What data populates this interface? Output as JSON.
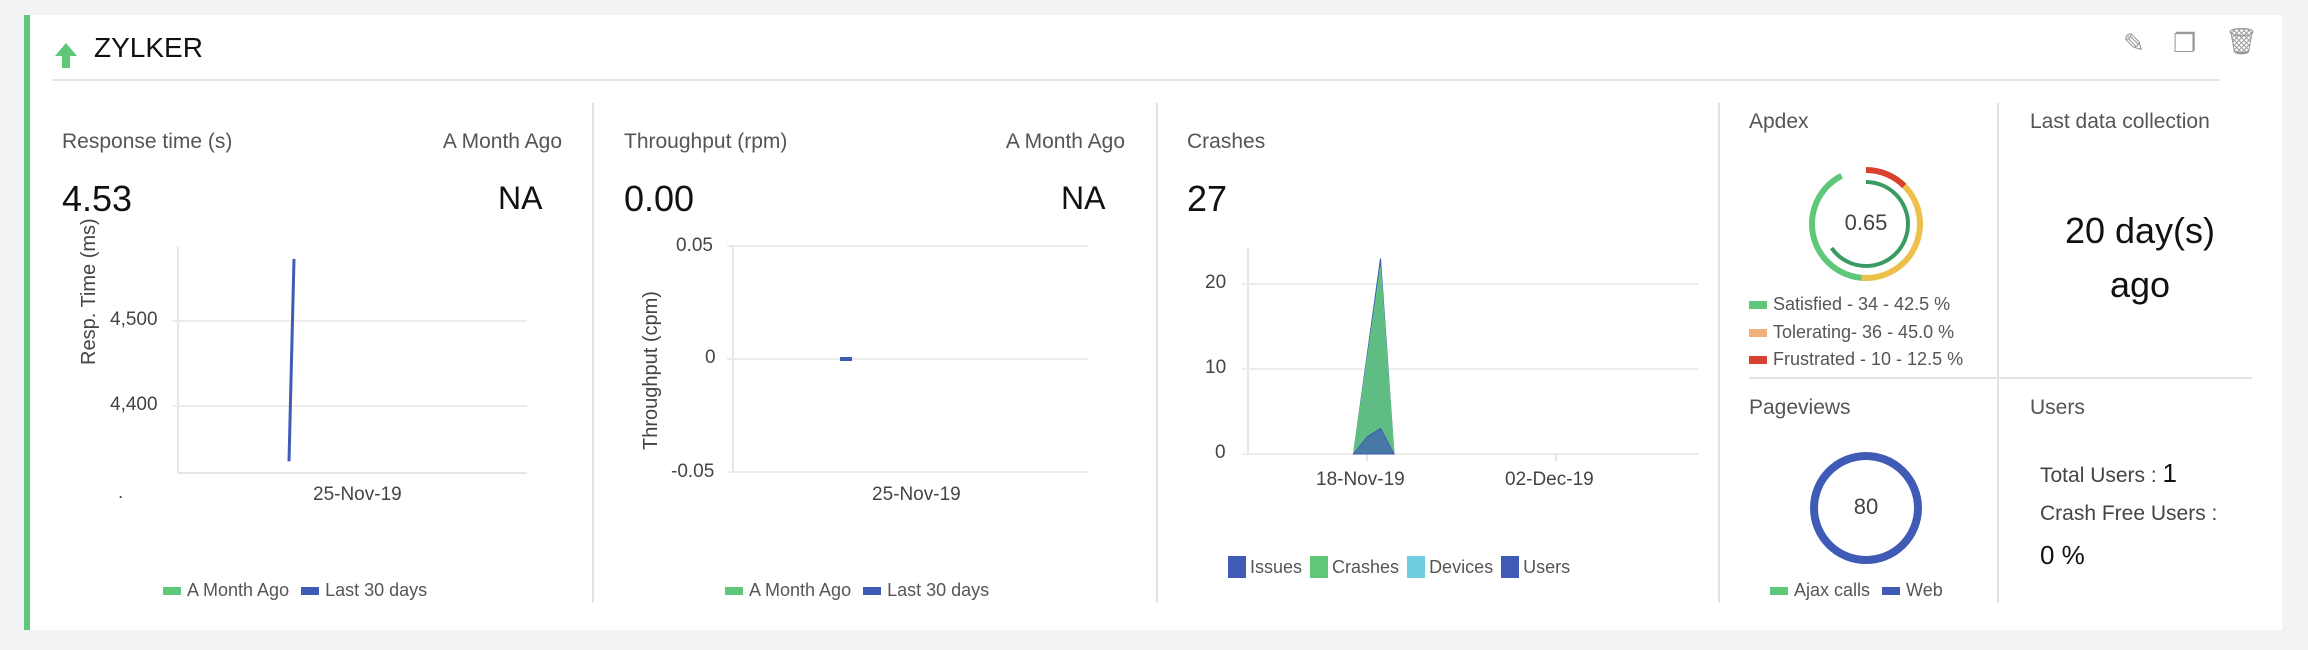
{
  "header": {
    "title": "ZYLKER",
    "status_icon": "arrow-up-icon",
    "actions": [
      "edit-icon",
      "copy-icon",
      "trash-icon"
    ]
  },
  "colors": {
    "accent": "#5ec878",
    "blue": "#3f5bb5",
    "green": "#5ec878",
    "light_blue": "#6fcde0",
    "orange": "#efb27a",
    "red": "#d9412f",
    "yellow": "#ecc04a",
    "dark_green": "#3a9a63"
  },
  "response": {
    "label": "Response time (s)",
    "compare_label": "A Month Ago",
    "value": "4.53",
    "compare_value": "NA"
  },
  "throughput": {
    "label": "Throughput (rpm)",
    "compare_label": "A Month Ago",
    "value": "0.00",
    "compare_value": "NA"
  },
  "crashes": {
    "label": "Crashes",
    "value": "27"
  },
  "apdex": {
    "label": "Apdex",
    "score": "0.65",
    "legend": [
      {
        "label": "Satisfied  - 34 - 42.5 %",
        "count": 34,
        "color": "#5ec878"
      },
      {
        "label": "Tolerating- 36 - 45.0 %",
        "count": 36,
        "color": "#efb27a"
      },
      {
        "label": "Frustrated - 10 - 12.5 %",
        "count": 10,
        "color": "#d9412f"
      }
    ]
  },
  "last_collection": {
    "label": "Last data collection",
    "line1": "20 day(s)",
    "line2": "ago"
  },
  "pageviews": {
    "label": "Pageviews",
    "value": "80",
    "legend": [
      {
        "label": "Ajax calls",
        "color": "#5ec878"
      },
      {
        "label": "Web",
        "color": "#3f5bb5"
      }
    ]
  },
  "users": {
    "label": "Users",
    "total_label": "Total Users",
    "total_value": "1",
    "crash_free_label": "Crash Free Users",
    "crash_free_value": "0 %"
  },
  "chart_data": [
    {
      "type": "line",
      "ylabel": "Resp. Time (ms)",
      "xticks": [
        "25-Nov-19"
      ],
      "yticks": [
        "4,400",
        "4,500"
      ],
      "ylim": [
        4300,
        4580
      ],
      "grid": true,
      "legend": "bottom",
      "series": [
        {
          "name": "A Month Ago",
          "color": "#5ec878",
          "points": []
        },
        {
          "name": "Last 30 days",
          "color": "#3f5bb5",
          "points": [
            [
              0,
              4335
            ],
            [
              1,
              4573
            ]
          ]
        }
      ],
      "x_tick_dot": "."
    },
    {
      "type": "line",
      "ylabel": "Throughput (cpm)",
      "xticks": [
        "25-Nov-19"
      ],
      "yticks": [
        "0.05",
        "0",
        "-0.05"
      ],
      "ylim": [
        -0.05,
        0.05
      ],
      "grid": true,
      "legend": "bottom",
      "series": [
        {
          "name": "A Month Ago",
          "color": "#5ec878",
          "points": []
        },
        {
          "name": "Last 30 days",
          "color": "#3f5bb5",
          "points": [
            [
              0,
              0
            ]
          ]
        }
      ]
    },
    {
      "type": "area",
      "xticks": [
        "18-Nov-19",
        "02-Dec-19"
      ],
      "yticks": [
        "0",
        "10",
        "20"
      ],
      "ylim": [
        0,
        25
      ],
      "grid": true,
      "legend": "bottom",
      "series": [
        {
          "name": "Issues",
          "color": "#3f5bb5",
          "values": [
            [
              "17-Nov",
              0
            ],
            [
              "19-Nov",
              23
            ],
            [
              "20-Nov",
              0
            ]
          ]
        },
        {
          "name": "Crashes",
          "color": "#5ec878",
          "values": [
            [
              "17-Nov",
              0
            ],
            [
              "19-Nov",
              22
            ],
            [
              "20-Nov",
              0
            ]
          ]
        },
        {
          "name": "Devices",
          "color": "#6fcde0",
          "values": []
        },
        {
          "name": "Users",
          "color": "#3f5bb5",
          "values": [
            [
              "17-Nov",
              0
            ],
            [
              "18-Nov",
              2
            ],
            [
              "19-Nov",
              3
            ],
            [
              "20-Nov",
              0
            ]
          ]
        }
      ]
    }
  ]
}
